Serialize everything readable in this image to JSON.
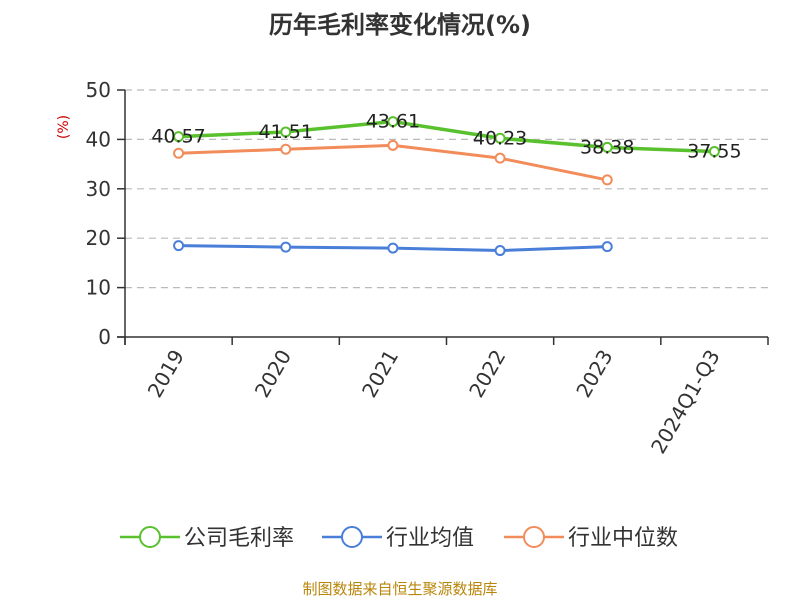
{
  "chart_data": {
    "type": "line",
    "title": "历年毛利率变化情况(%)",
    "ylabel": "(%)",
    "xlabel": "",
    "categories": [
      "2019",
      "2020",
      "2021",
      "2022",
      "2023",
      "2024Q1-Q3"
    ],
    "ylim": [
      0,
      50
    ],
    "yticks": [
      0,
      10,
      20,
      30,
      40,
      50
    ],
    "grid": true,
    "legend_position": "bottom",
    "series": [
      {
        "name": "公司毛利率",
        "color": "#5ac12e",
        "values": [
          40.57,
          41.51,
          43.61,
          40.23,
          38.38,
          37.55
        ],
        "labels": [
          "40.57",
          "41.51",
          "43.61",
          "40.23",
          "38.38",
          "37.55"
        ]
      },
      {
        "name": "行业均值",
        "color": "#4a7fd9",
        "values": [
          18.5,
          18.2,
          18.0,
          17.5,
          18.3,
          null
        ]
      },
      {
        "name": "行业中位数",
        "color": "#f28c5a",
        "values": [
          37.2,
          38.0,
          38.8,
          36.2,
          31.8,
          null
        ]
      }
    ]
  },
  "source": "制图数据来自恒生聚源数据库"
}
